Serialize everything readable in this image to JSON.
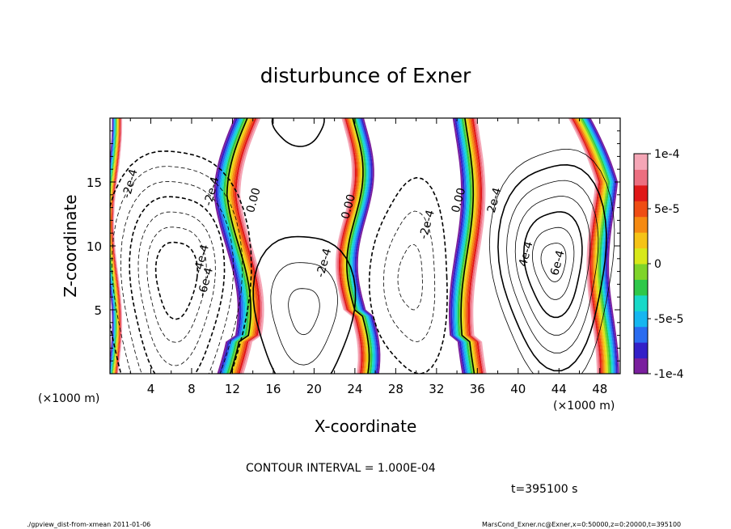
{
  "chart_data": {
    "type": "contour",
    "title": "disturbunce of Exner",
    "xlabel": "X-coordinate",
    "ylabel": "Z-coordinate",
    "x_unit": "(×1000 m)",
    "y_unit": "(×1000 m)",
    "xlim": [
      0,
      50
    ],
    "ylim": [
      0,
      20
    ],
    "xticks": [
      "4",
      "8",
      "12",
      "16",
      "20",
      "24",
      "28",
      "32",
      "36",
      "40",
      "44",
      "48"
    ],
    "yticks": [
      "5",
      "10",
      "15"
    ],
    "contour_interval": "CONTOUR INTERVAL = 1.000E-04",
    "time": "t=395100 s",
    "colorbar": {
      "labels": [
        "1e-4",
        "5e-5",
        "0",
        "-5e-5",
        "-1e-4"
      ],
      "min": -0.0001,
      "max": 0.0001,
      "colors": [
        "#7a1f9e",
        "#3320c8",
        "#2a6cf0",
        "#15b6f0",
        "#18d9c8",
        "#2ec84a",
        "#7fd42a",
        "#d8e81a",
        "#f5c316",
        "#f58a12",
        "#ef4d14",
        "#e01818",
        "#ec6f80",
        "#f5a6b6"
      ]
    },
    "zero_band_x": [
      13.5,
      24.5,
      35
    ],
    "contour_labels": [
      {
        "text": "-2e-4",
        "x": 2.3,
        "y": 14.8
      },
      {
        "text": "-2e-4",
        "x": 10.3,
        "y": 14.2
      },
      {
        "text": "-4e-4",
        "x": 9.3,
        "y": 8.9
      },
      {
        "text": "-6e-4",
        "x": 9.7,
        "y": 7.1
      },
      {
        "text": "0.00",
        "x": 14.4,
        "y": 13.5
      },
      {
        "text": "-2e-4",
        "x": 21.3,
        "y": 8.6
      },
      {
        "text": "0.00",
        "x": 23.7,
        "y": 13.0
      },
      {
        "text": "-2e-4",
        "x": 31.4,
        "y": 11.6
      },
      {
        "text": "0.00",
        "x": 34.5,
        "y": 13.5
      },
      {
        "text": "2e-4",
        "x": 38.0,
        "y": 13.5
      },
      {
        "text": "4e-4",
        "x": 41.1,
        "y": 9.3
      },
      {
        "text": "6e-4",
        "x": 44.2,
        "y": 8.6
      }
    ]
  },
  "footer": {
    "left": "./gpview_dist-from-xmean  2011-01-06",
    "right": "MarsCond_Exner.nc@Exner,x=0:50000,z=0:20000,t=395100"
  }
}
